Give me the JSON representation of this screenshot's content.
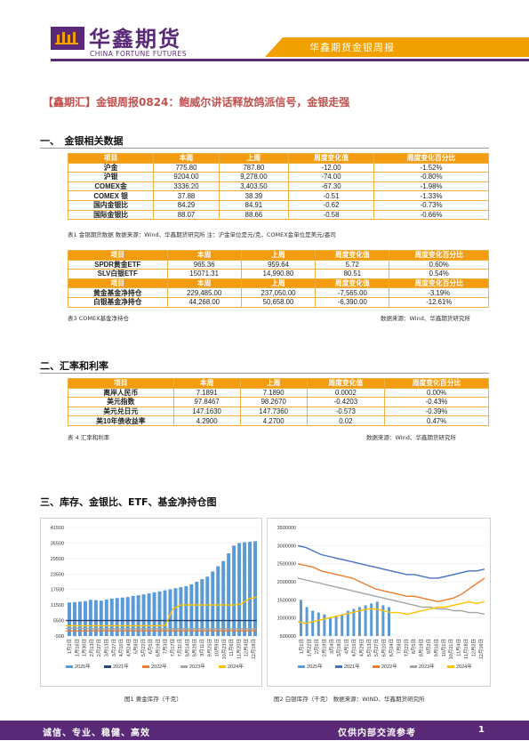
{
  "header": {
    "logo_cn": "华鑫期货",
    "logo_en": "CHINA FORTUNE FUTURES",
    "report_name": "华鑫期货金银周报",
    "brand_color": "#5a2a78",
    "accent_color": "#f0a000"
  },
  "main_title": "【鑫期汇】金银周报0824：鲍威尔讲话释放鸽派信号，金银走强",
  "sections": {
    "s1": "一、　金银相关数据",
    "s2": "二、汇率和利率",
    "s3": "三、库存、金银比、ETF、基金净持仓图"
  },
  "table1": {
    "headers": [
      "项目",
      "本周",
      "上周",
      "周度变化值",
      "周度变化百分比"
    ],
    "rows": [
      [
        "沪金",
        "775.80",
        "787.80",
        "-12.00",
        "-1.52%"
      ],
      [
        "沪银",
        "9204.00",
        "9,278.00",
        "-74.00",
        "-0.80%"
      ],
      [
        "COMEX金",
        "3336.20",
        "3,403.50",
        "-67.30",
        "-1.98%"
      ],
      [
        "COMEX 银",
        "37.88",
        "38.39",
        "-0.51",
        "-1.33%"
      ],
      [
        "国内金银比",
        "84.29",
        "84.91",
        "-0.62",
        "-0.73%"
      ],
      [
        "国际金银比",
        "88.07",
        "88.66",
        "-0.58",
        "-0.66%"
      ]
    ],
    "caption": "表1  金银期货数据                    数据来源：Wind、华鑫期货研究所  注：沪金单位是元/克，COMEX金单位是美元/盎司"
  },
  "table2": {
    "headers": [
      "项目",
      "本周",
      "上周",
      "周度变化值",
      "周度变化百分比"
    ],
    "rows": [
      [
        "SPDR黄金ETF",
        "965.36",
        "959.64",
        "5.72",
        "0.60%"
      ],
      [
        "SLV白银ETF",
        "15071.31",
        "14,990.80",
        "80.51",
        "0.54%"
      ]
    ],
    "headers2": [
      "项目",
      "本周",
      "上周",
      "周度变化值",
      "周度变化百分比"
    ],
    "rows2": [
      [
        "黄金基金净持仓",
        "229,485.00",
        "237,050.00",
        "-7,565.00",
        "-3.19%"
      ],
      [
        "白银基金净持仓",
        "44,268.00",
        "50,658.00",
        "-6,390.00",
        "-12.61%"
      ]
    ],
    "caption_left": "表3  COMEX基金净持仓",
    "caption_right": "数据来源：Wind、华鑫期货研究所"
  },
  "table3": {
    "headers": [
      "项目",
      "本周",
      "上周",
      "周度变化值",
      "周度变化百分比"
    ],
    "rows": [
      [
        "离岸人民币",
        "7.1891",
        "7.1890",
        "0.0002",
        "0.00%"
      ],
      [
        "美元指数",
        "97.8467",
        "98.2670",
        "-0.4203",
        "-0.43%"
      ],
      [
        "美元兑日元",
        "147.1630",
        "147.7360",
        "-0.573",
        "-0.39%"
      ],
      [
        "美10年债收益率",
        "4.2900",
        "4.2700",
        "0.02",
        "0.47%"
      ]
    ],
    "caption_left": "表 4 汇率和利率",
    "caption_right": "数据来源：Wind、华鑫期货研究所"
  },
  "chart_data": [
    {
      "type": "bar",
      "title": "",
      "caption": "图1 黄金库存（千克）",
      "yticks": [
        "41500",
        "35500",
        "29500",
        "23500",
        "17500",
        "11500",
        "5500",
        "-500"
      ],
      "ylim": [
        -500,
        41500
      ],
      "xticks": [
        "1月2日",
        "1月16日",
        "1月30日",
        "2月13日",
        "2月27日",
        "3月13日",
        "3月27日",
        "4月10日",
        "4月24日",
        "5月8日",
        "5月22日",
        "6月5日",
        "6月19日",
        "7月3日",
        "7月17日",
        "7月31日",
        "8月14日",
        "8月28日",
        "9月11日",
        "9月25日",
        "10月9日",
        "10月23日",
        "11月6日",
        "11月20日",
        "12月4日",
        "12月18日"
      ],
      "series": [
        {
          "name": "2025年",
          "color": "#5b9bd5",
          "values": [
            12500,
            12600,
            12800,
            13000,
            13500,
            13400,
            13200,
            13600,
            14000,
            14200,
            14400,
            14600,
            15000,
            15300,
            15600,
            16000,
            16400,
            16800,
            17200,
            17600,
            18000,
            18400,
            18800,
            19500,
            20500,
            21500,
            22500,
            24500,
            26500,
            28500,
            31500,
            34500,
            35500,
            35800,
            36000,
            36200
          ]
        },
        {
          "name": "2021年",
          "color": "#264478",
          "values": [
            5500,
            5500,
            5500,
            5500,
            5500,
            5500,
            5500,
            5500,
            5500,
            5500,
            5500,
            5500,
            5500,
            5500,
            5500,
            5500,
            5500,
            5500,
            5500,
            5500,
            5500,
            5500,
            5500,
            5500,
            5500,
            5500
          ]
        },
        {
          "name": "2022年",
          "color": "#ed7d31",
          "values": [
            1500,
            1500,
            1500,
            1500,
            1500,
            1500,
            1500,
            1500,
            1500,
            1500,
            1500,
            1500,
            1500,
            1500,
            1500,
            1500,
            1500,
            1500,
            1500,
            1500,
            1500,
            1500,
            1500,
            1500,
            1500,
            1500
          ]
        },
        {
          "name": "2023年",
          "color": "#a5a5a5",
          "values": [
            2500,
            2500,
            2500,
            2400,
            2300,
            2300,
            2300,
            2300,
            2300,
            2300,
            2300,
            2300,
            2300,
            2300,
            2300,
            2300,
            2300,
            2300,
            2300,
            2300,
            2300,
            2300,
            2300,
            2300,
            2300,
            2300
          ]
        },
        {
          "name": "2024年",
          "color": "#ffc000",
          "values": [
            3500,
            3500,
            3500,
            3500,
            3500,
            3500,
            3500,
            3500,
            3500,
            3500,
            3500,
            3500,
            3500,
            3500,
            10000,
            11500,
            11500,
            11500,
            11500,
            11500,
            11500,
            11500,
            11500,
            12000,
            14000,
            14500
          ]
        }
      ]
    },
    {
      "type": "line",
      "title": "",
      "caption": "图2 白银库存（千克）    数据来源：WIND、华鑫期货研究所",
      "yticks": [
        "3500000",
        "3000000",
        "2500000",
        "2000000",
        "1500000",
        "1000000",
        "500000"
      ],
      "ylim": [
        500000,
        3500000
      ],
      "xticks": [
        "1月1日",
        "1月22日",
        "2月5日",
        "2月19日",
        "3月4日",
        "3月18日",
        "4月1日",
        "4月15日",
        "4月29日",
        "5月13日",
        "5月27日",
        "6月10日",
        "6月24日",
        "7月8日",
        "7月22日",
        "8月5日",
        "8月19日",
        "9月2日",
        "9月16日",
        "10月1日",
        "10月21日",
        "11月4日",
        "11月18日",
        "12月2日",
        "12月16日"
      ],
      "series": [
        {
          "name": "2025年",
          "color": "#5b9bd5",
          "values": [
            1500000,
            1300000,
            1200000,
            1150000,
            1100000,
            1000000,
            1050000,
            1100000,
            1200000,
            1250000,
            1300000,
            1350000,
            1400000,
            1450000,
            1350000,
            1300000
          ]
        },
        {
          "name": "2021年",
          "color": "#4472c4",
          "values": [
            3000000,
            2950000,
            2850000,
            2750000,
            2700000,
            2650000,
            2600000,
            2550000,
            2500000,
            2450000,
            2400000,
            2350000,
            2300000,
            2250000,
            2200000,
            2200000,
            2150000,
            2100000,
            2100000,
            2150000,
            2200000,
            2250000,
            2300000,
            2300000,
            2350000
          ]
        },
        {
          "name": "2022年",
          "color": "#ed7d31",
          "values": [
            2500000,
            2450000,
            2400000,
            2300000,
            2250000,
            2200000,
            2150000,
            2100000,
            2000000,
            1900000,
            1800000,
            1750000,
            1700000,
            1650000,
            1600000,
            1600000,
            1550000,
            1500000,
            1450000,
            1500000,
            1550000,
            1650000,
            1800000,
            1950000,
            2100000
          ]
        },
        {
          "name": "2023年",
          "color": "#a5a5a5",
          "values": [
            2100000,
            2050000,
            2000000,
            1950000,
            1900000,
            1850000,
            1800000,
            1750000,
            1700000,
            1650000,
            1600000,
            1550000,
            1500000,
            1450000,
            1400000,
            1350000,
            1300000,
            1300000,
            1250000,
            1250000,
            1200000,
            1200000,
            1150000,
            1150000,
            1100000
          ]
        },
        {
          "name": "2024年",
          "color": "#ffc000",
          "values": [
            900000,
            850000,
            900000,
            950000,
            1000000,
            1050000,
            1100000,
            1150000,
            1200000,
            1250000,
            1250000,
            1200000,
            1150000,
            1150000,
            1100000,
            1150000,
            1200000,
            1250000,
            1300000,
            1300000,
            1350000,
            1400000,
            1450000,
            1400000,
            1450000
          ]
        }
      ]
    }
  ],
  "footer": {
    "left": "诚信、专业、稳健、高效",
    "right": "仅供内部交流参考",
    "page": "1"
  }
}
